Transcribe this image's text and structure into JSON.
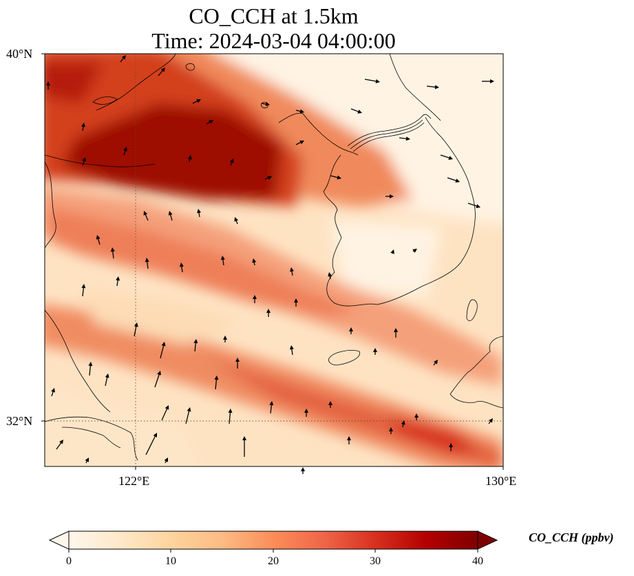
{
  "title": {
    "line1": "CO_CCH at 1.5km",
    "line2": "Time: 2024-03-04 04:00:00"
  },
  "axes": {
    "lat_labels": [
      "40°N",
      "32°N"
    ],
    "lon_labels": [
      "122°E",
      "130°E"
    ],
    "lat_range": [
      31,
      40
    ],
    "lon_range": [
      120,
      130
    ],
    "gridlines": "dotted at 32°N and 122°E"
  },
  "colorbar": {
    "label": "CO_CCH (ppbv)",
    "ticks": [
      "0",
      "10",
      "20",
      "30",
      "40"
    ],
    "range": [
      0,
      40
    ],
    "colormap": "OrRd",
    "colors": [
      "#fff7ec",
      "#fee8c8",
      "#fdd49e",
      "#fdbb84",
      "#fc8d59",
      "#ef6548",
      "#d7301f",
      "#b30000",
      "#7f0000"
    ],
    "extend": "both"
  },
  "map_content": {
    "field": "CO_CCH concentration",
    "level": "1.5km",
    "features": [
      "coastlines",
      "country borders",
      "wind vectors"
    ]
  }
}
